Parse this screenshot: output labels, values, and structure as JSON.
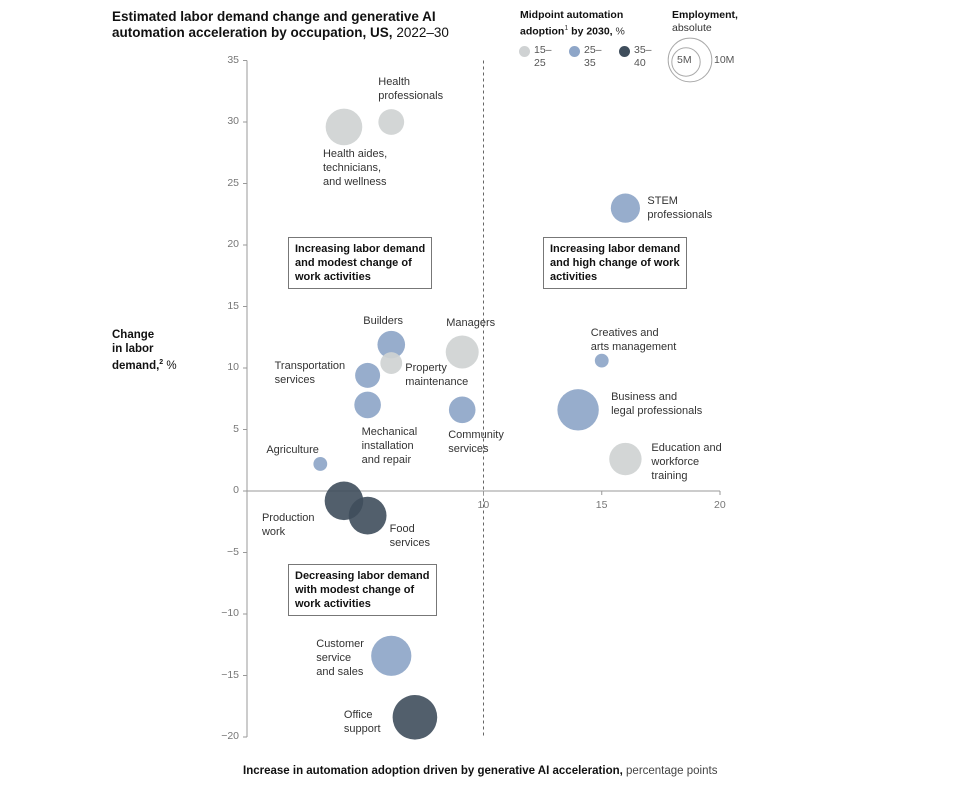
{
  "title": {
    "line1": "Estimated labor demand change and generative AI",
    "line2_bold": "automation acceleration by occupation, US,",
    "line2_normal": " 2022–30"
  },
  "legend": {
    "adoption_title1": "Midpoint automation",
    "adoption_title2_bold": "adoption",
    "adoption_sup": "1",
    "adoption_title2_bold_b": " by 2030,",
    "adoption_title2_unit": " %",
    "items": [
      {
        "l1": "15–",
        "l2": "25",
        "color": "#cfd2d3"
      },
      {
        "l1": "25–",
        "l2": "35",
        "color": "#8ea6c8"
      },
      {
        "l1": "35–",
        "l2": "40",
        "color": "#3f4e5c"
      }
    ],
    "emp_title": "Employment,",
    "emp_sub": "absolute",
    "emp_small": "5M",
    "emp_large": "10M"
  },
  "ylabel": {
    "l1": "Change",
    "l2": "in labor",
    "l3": "demand,",
    "sup": "2",
    "unit": " %"
  },
  "xlabel": {
    "bold": "Increase in automation adoption driven by generative AI acceleration,",
    "normal": " percentage points"
  },
  "colors": {
    "light": "#cfd2d3",
    "mid": "#8ea6c8",
    "dark": "#3f4e5c"
  },
  "quadrants": {
    "top_left": [
      "Increasing labor demand",
      "and modest change of",
      "work activities"
    ],
    "top_right": [
      "Increasing labor demand",
      "and high change of work",
      "activities"
    ],
    "bottom_left": [
      "Decreasing labor demand",
      "with modest change of",
      "work activities"
    ]
  },
  "chart_data": {
    "type": "scatter",
    "title": "Estimated labor demand change and generative AI automation acceleration by occupation, US, 2022–30",
    "xlabel": "Increase in automation adoption driven by generative AI acceleration, percentage points",
    "ylabel": "Change in labor demand, %",
    "xlim": [
      0,
      20
    ],
    "ylim": [
      -20,
      35
    ],
    "xticks": [
      10,
      15,
      20
    ],
    "yticks": [
      35,
      30,
      25,
      20,
      15,
      10,
      5,
      0,
      -5,
      -10,
      -15,
      -20
    ],
    "reference_line_x": 10,
    "points": [
      {
        "label": [
          "Health",
          "professionals"
        ],
        "x": 6.1,
        "y": 30.0,
        "employment": 3.5,
        "group": "light"
      },
      {
        "label": [
          "Health aides,",
          "technicians,",
          "and wellness"
        ],
        "x": 4.1,
        "y": 29.6,
        "employment": 7.0,
        "group": "light"
      },
      {
        "label": [
          "STEM",
          "professionals"
        ],
        "x": 16.0,
        "y": 23.0,
        "employment": 4.5,
        "group": "mid"
      },
      {
        "label": [
          "Managers"
        ],
        "x": 9.1,
        "y": 11.3,
        "employment": 5.7,
        "group": "light"
      },
      {
        "label": [
          "Builders"
        ],
        "x": 6.1,
        "y": 11.9,
        "employment": 4.0,
        "group": "mid"
      },
      {
        "label": [
          "Property",
          "maintenance"
        ],
        "x": 6.1,
        "y": 10.4,
        "employment": 2.5,
        "group": "light"
      },
      {
        "label": [
          "Transportation",
          "services"
        ],
        "x": 5.1,
        "y": 9.4,
        "employment": 3.3,
        "group": "mid"
      },
      {
        "label": [
          "Mechanical",
          "installation",
          "and repair"
        ],
        "x": 5.1,
        "y": 7.0,
        "employment": 3.7,
        "group": "mid"
      },
      {
        "label": [
          "Community",
          "services"
        ],
        "x": 9.1,
        "y": 6.6,
        "employment": 3.7,
        "group": "mid"
      },
      {
        "label": [
          "Creatives and",
          "arts management"
        ],
        "x": 15.0,
        "y": 10.6,
        "employment": 1.0,
        "group": "mid"
      },
      {
        "label": [
          "Business and",
          "legal professionals"
        ],
        "x": 14.0,
        "y": 6.6,
        "employment": 9.0,
        "group": "mid"
      },
      {
        "label": [
          "Education and",
          "workforce",
          "training"
        ],
        "x": 16.0,
        "y": 2.6,
        "employment": 5.5,
        "group": "light"
      },
      {
        "label": [
          "Agriculture"
        ],
        "x": 3.1,
        "y": 2.2,
        "employment": 1.0,
        "group": "mid"
      },
      {
        "label": [
          "Production",
          "work"
        ],
        "x": 4.1,
        "y": -0.8,
        "employment": 7.8,
        "group": "dark"
      },
      {
        "label": [
          "Food",
          "services"
        ],
        "x": 5.1,
        "y": -2.0,
        "employment": 7.5,
        "group": "dark"
      },
      {
        "label": [
          "Customer",
          "service",
          "and sales"
        ],
        "x": 6.1,
        "y": -13.4,
        "employment": 8.5,
        "group": "mid"
      },
      {
        "label": [
          "Office",
          "support"
        ],
        "x": 7.1,
        "y": -18.4,
        "employment": 10.4,
        "group": "dark"
      }
    ],
    "legend_groups": [
      "15–25",
      "25–35",
      "35–40"
    ],
    "size_legend": [
      "5M",
      "10M"
    ]
  }
}
